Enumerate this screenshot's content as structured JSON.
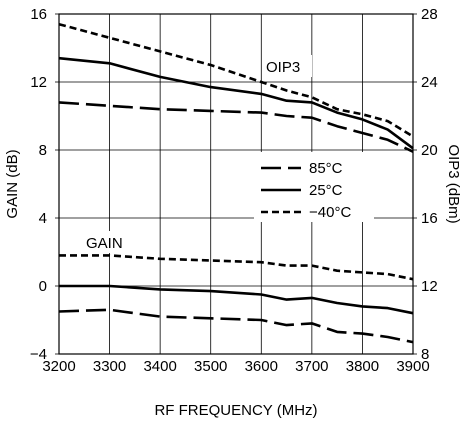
{
  "chart_data": {
    "type": "line",
    "xlabel": "RF FREQUENCY (MHz)",
    "ylabel": "GAIN (dB)",
    "y2label": "OIP3 (dBm)",
    "xlim": [
      3200,
      3900
    ],
    "ylim": [
      -4,
      16
    ],
    "y2lim": [
      8,
      28
    ],
    "x_ticks": [
      "3200",
      "3300",
      "3400",
      "3500",
      "3600",
      "3700",
      "3800",
      "3900"
    ],
    "y_ticks": [
      "16",
      "12",
      "8",
      "4",
      "0",
      "−4"
    ],
    "y2_ticks": [
      "28",
      "24",
      "20",
      "16",
      "12",
      "8"
    ],
    "grid": true,
    "annotations": {
      "oip3": "OIP3",
      "gain": "GAIN"
    },
    "legend": {
      "placement": "center-right",
      "entries": [
        {
          "name": "85°C",
          "style": "long-dash"
        },
        {
          "name": "25°C",
          "style": "solid"
        },
        {
          "name": "−40°C",
          "style": "short-dash"
        }
      ]
    },
    "x": [
      3200,
      3300,
      3400,
      3500,
      3600,
      3650,
      3700,
      3750,
      3800,
      3850,
      3900
    ],
    "series": [
      {
        "name": "85°C",
        "group": "GAIN",
        "axis": "left",
        "style": "long-dash",
        "values": [
          -1.5,
          -1.4,
          -1.8,
          -1.9,
          -2.0,
          -2.3,
          -2.2,
          -2.7,
          -2.8,
          -3.0,
          -3.3
        ]
      },
      {
        "name": "25°C",
        "group": "GAIN",
        "axis": "left",
        "style": "solid",
        "values": [
          0.0,
          0.0,
          -0.2,
          -0.3,
          -0.5,
          -0.8,
          -0.7,
          -1.0,
          -1.2,
          -1.3,
          -1.6
        ]
      },
      {
        "name": "−40°C",
        "group": "GAIN",
        "axis": "left",
        "style": "short-dash",
        "values": [
          1.8,
          1.8,
          1.6,
          1.5,
          1.4,
          1.2,
          1.2,
          0.9,
          0.8,
          0.7,
          0.4
        ]
      },
      {
        "name": "85°C",
        "group": "OIP3",
        "axis": "right",
        "style": "long-dash",
        "values": [
          22.8,
          22.6,
          22.4,
          22.3,
          22.2,
          22.0,
          21.9,
          21.4,
          21.0,
          20.6,
          19.9
        ]
      },
      {
        "name": "25°C",
        "group": "OIP3",
        "axis": "right",
        "style": "solid",
        "values": [
          25.4,
          25.1,
          24.3,
          23.7,
          23.3,
          22.9,
          22.8,
          22.2,
          21.8,
          21.2,
          20.1
        ]
      },
      {
        "name": "−40°C",
        "group": "OIP3",
        "axis": "right",
        "style": "short-dash",
        "values": [
          27.4,
          26.6,
          25.8,
          25.0,
          24.0,
          23.5,
          23.1,
          22.4,
          22.1,
          21.7,
          20.8
        ]
      }
    ]
  }
}
